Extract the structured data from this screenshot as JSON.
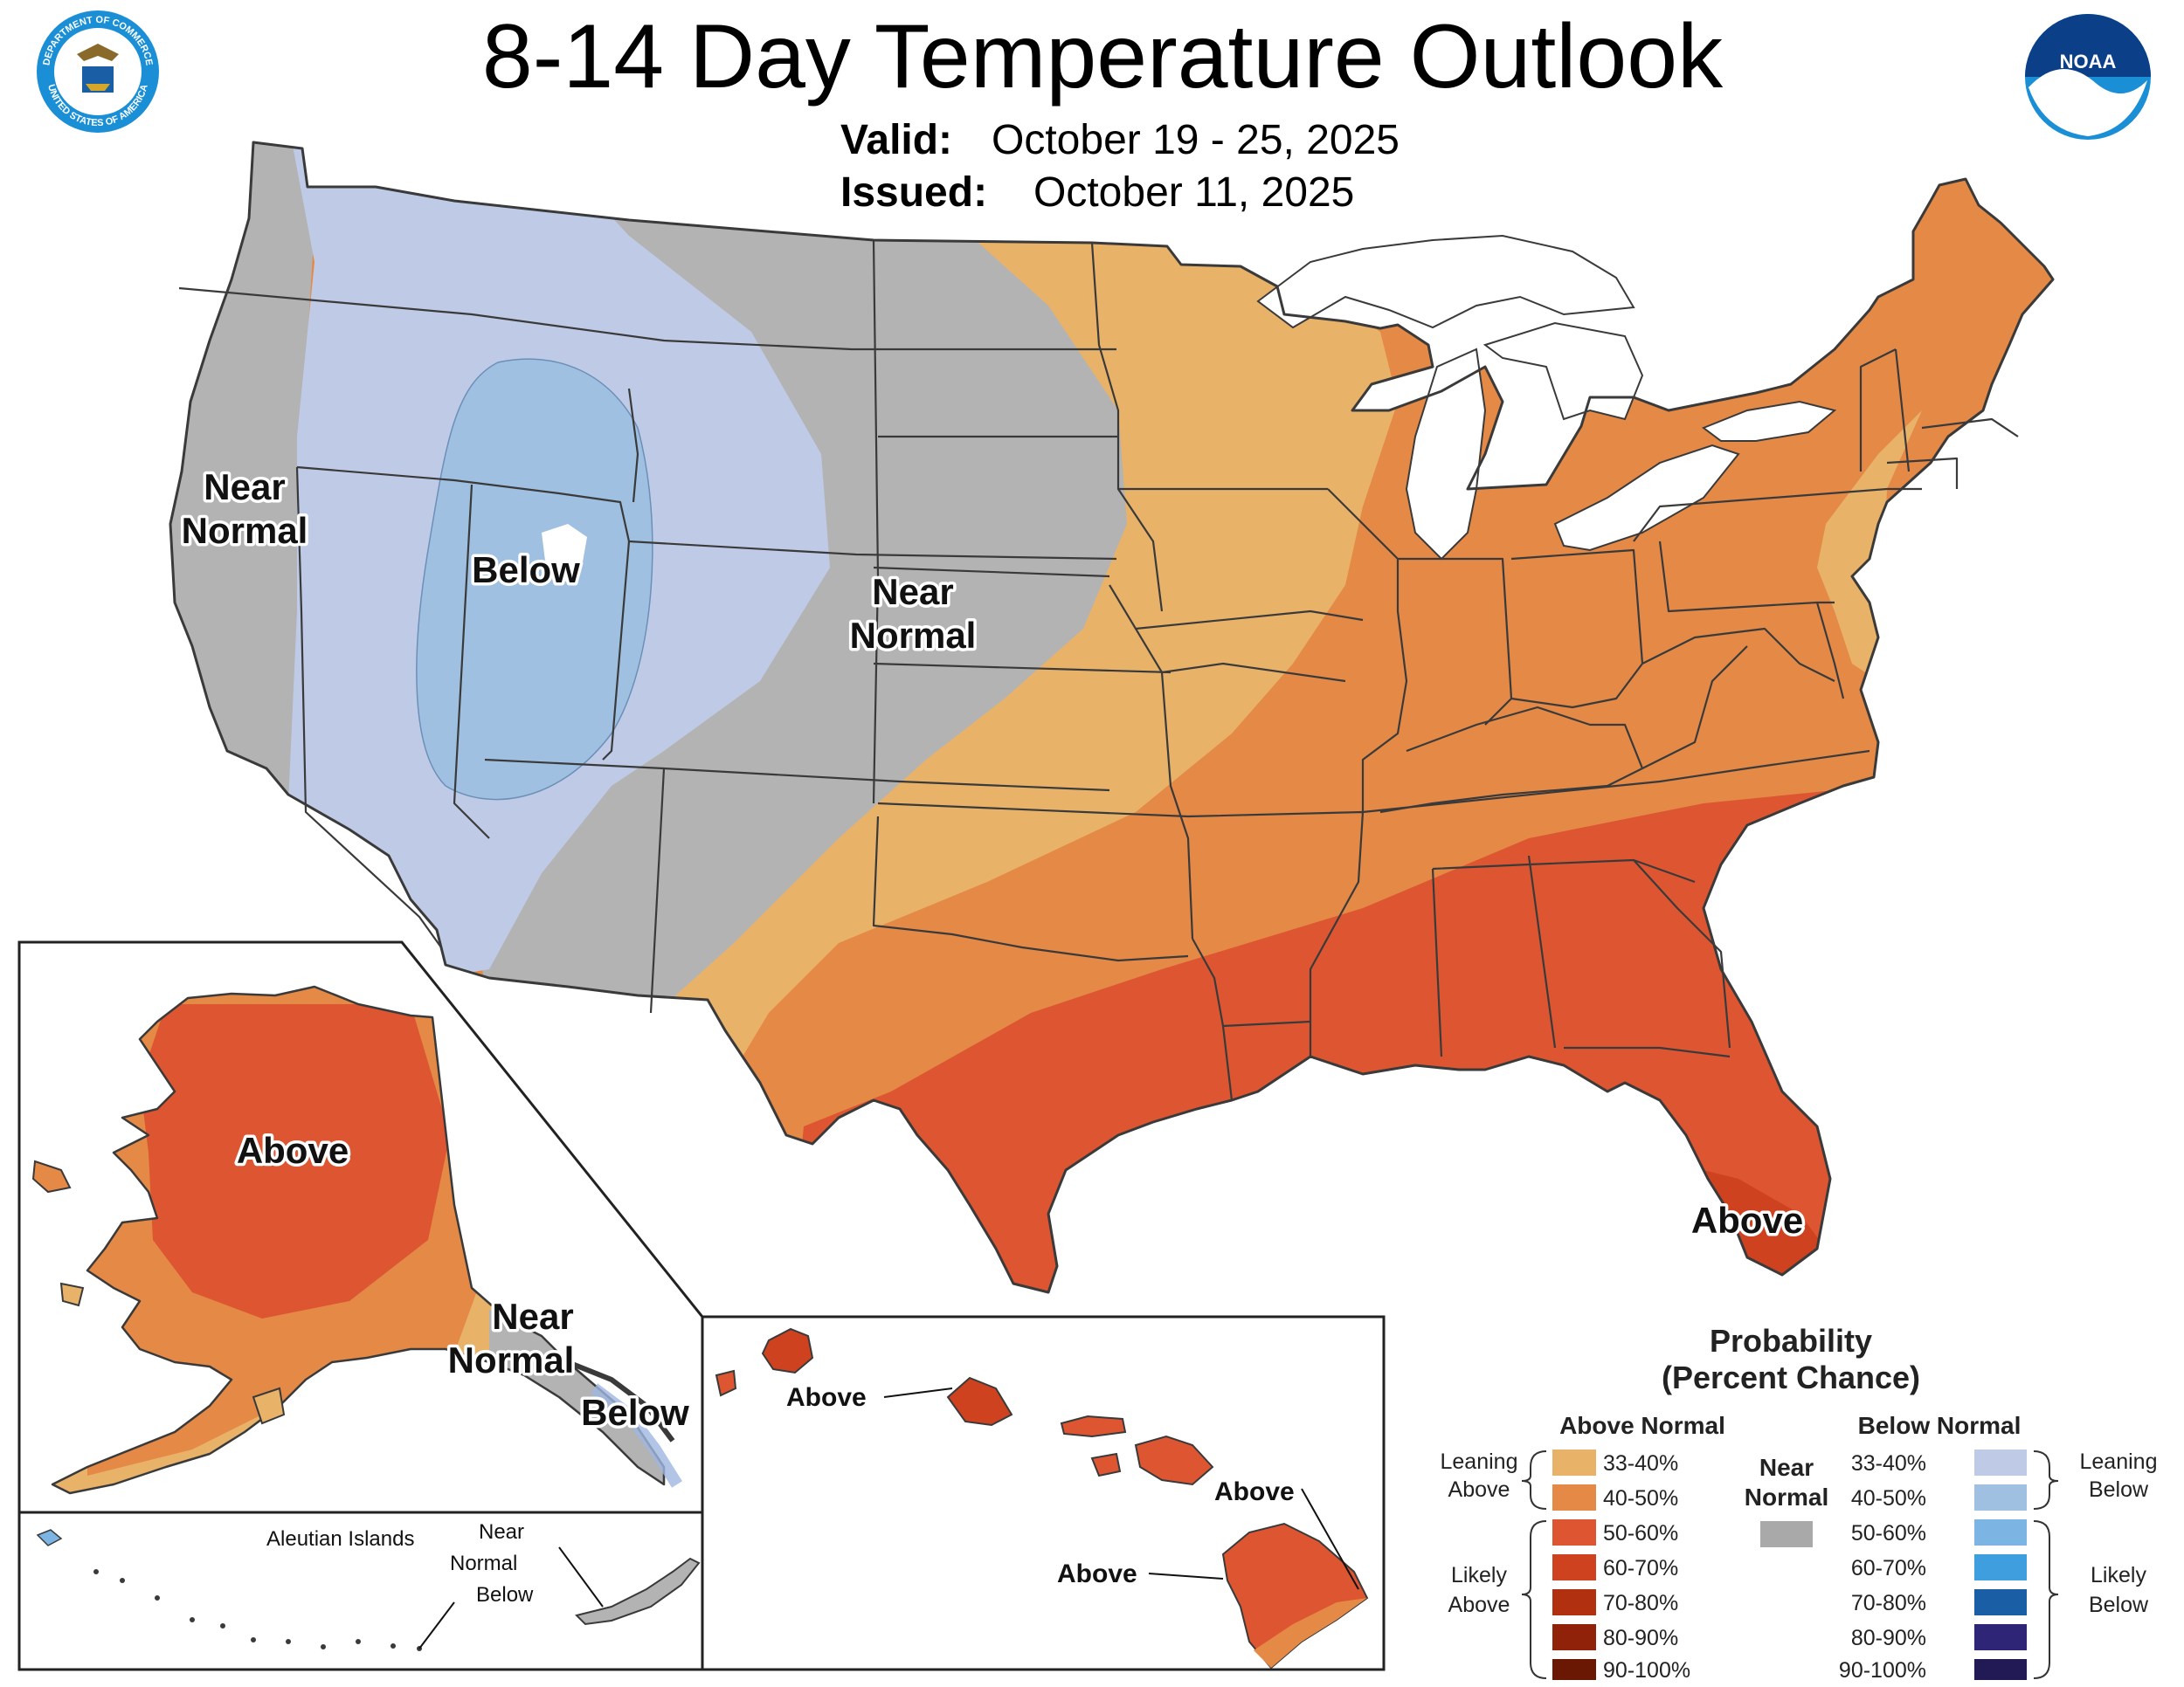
{
  "header": {
    "title": "8-14 Day Temperature Outlook",
    "valid_label": "Valid:",
    "valid_dates": "October 19 - 25, 2025",
    "issued_label": "Issued:",
    "issued_date": "October 11, 2025",
    "noaa_logo_text": "NOAA"
  },
  "seal": {
    "top_text": "DEPARTMENT OF COMMERCE",
    "bottom_text": "UNITED STATES OF AMERICA"
  },
  "conus_labels": {
    "west_coast": [
      "Near",
      "Normal"
    ],
    "great_basin": "Below",
    "plains": [
      "Near",
      "Normal"
    ],
    "florida": "Above"
  },
  "alaska_labels": {
    "interior": "Above",
    "panhandle_near": [
      "Near",
      "Normal"
    ],
    "panhandle_below": "Below"
  },
  "aleutian_labels": {
    "title": "Aleutian Islands",
    "category": [
      "Near",
      "Normal",
      "Below"
    ]
  },
  "hawaii_labels": {
    "kauai": "Above",
    "maui": "Above",
    "big_island": "Above"
  },
  "legend": {
    "title": [
      "Probability",
      "(Percent Chance)"
    ],
    "above_header": "Above Normal",
    "below_header": "Below Normal",
    "near_header": [
      "Near",
      "Normal"
    ],
    "leaning_above": [
      "Leaning",
      "Above"
    ],
    "likely_above": [
      "Likely",
      "Above"
    ],
    "leaning_below": [
      "Leaning",
      "Below"
    ],
    "likely_below": [
      "Likely",
      "Below"
    ],
    "above_bins": [
      {
        "label": "33-40%",
        "color": "#e9b269"
      },
      {
        "label": "40-50%",
        "color": "#e48946"
      },
      {
        "label": "50-60%",
        "color": "#dd5631"
      },
      {
        "label": "60-70%",
        "color": "#cf4220"
      },
      {
        "label": "70-80%",
        "color": "#b13010"
      },
      {
        "label": "80-90%",
        "color": "#8f2208"
      },
      {
        "label": "90-100%",
        "color": "#6a1704"
      }
    ],
    "below_bins": [
      {
        "label": "33-40%",
        "color": "#bfcbe6"
      },
      {
        "label": "40-50%",
        "color": "#9fc0e0"
      },
      {
        "label": "50-60%",
        "color": "#7cb4e3"
      },
      {
        "label": "60-70%",
        "color": "#3f9ede"
      },
      {
        "label": "70-80%",
        "color": "#1a5fa5"
      },
      {
        "label": "80-90%",
        "color": "#2f2577"
      },
      {
        "label": "90-100%",
        "color": "#211a55"
      }
    ],
    "near_color": "#a9a9a9"
  }
}
